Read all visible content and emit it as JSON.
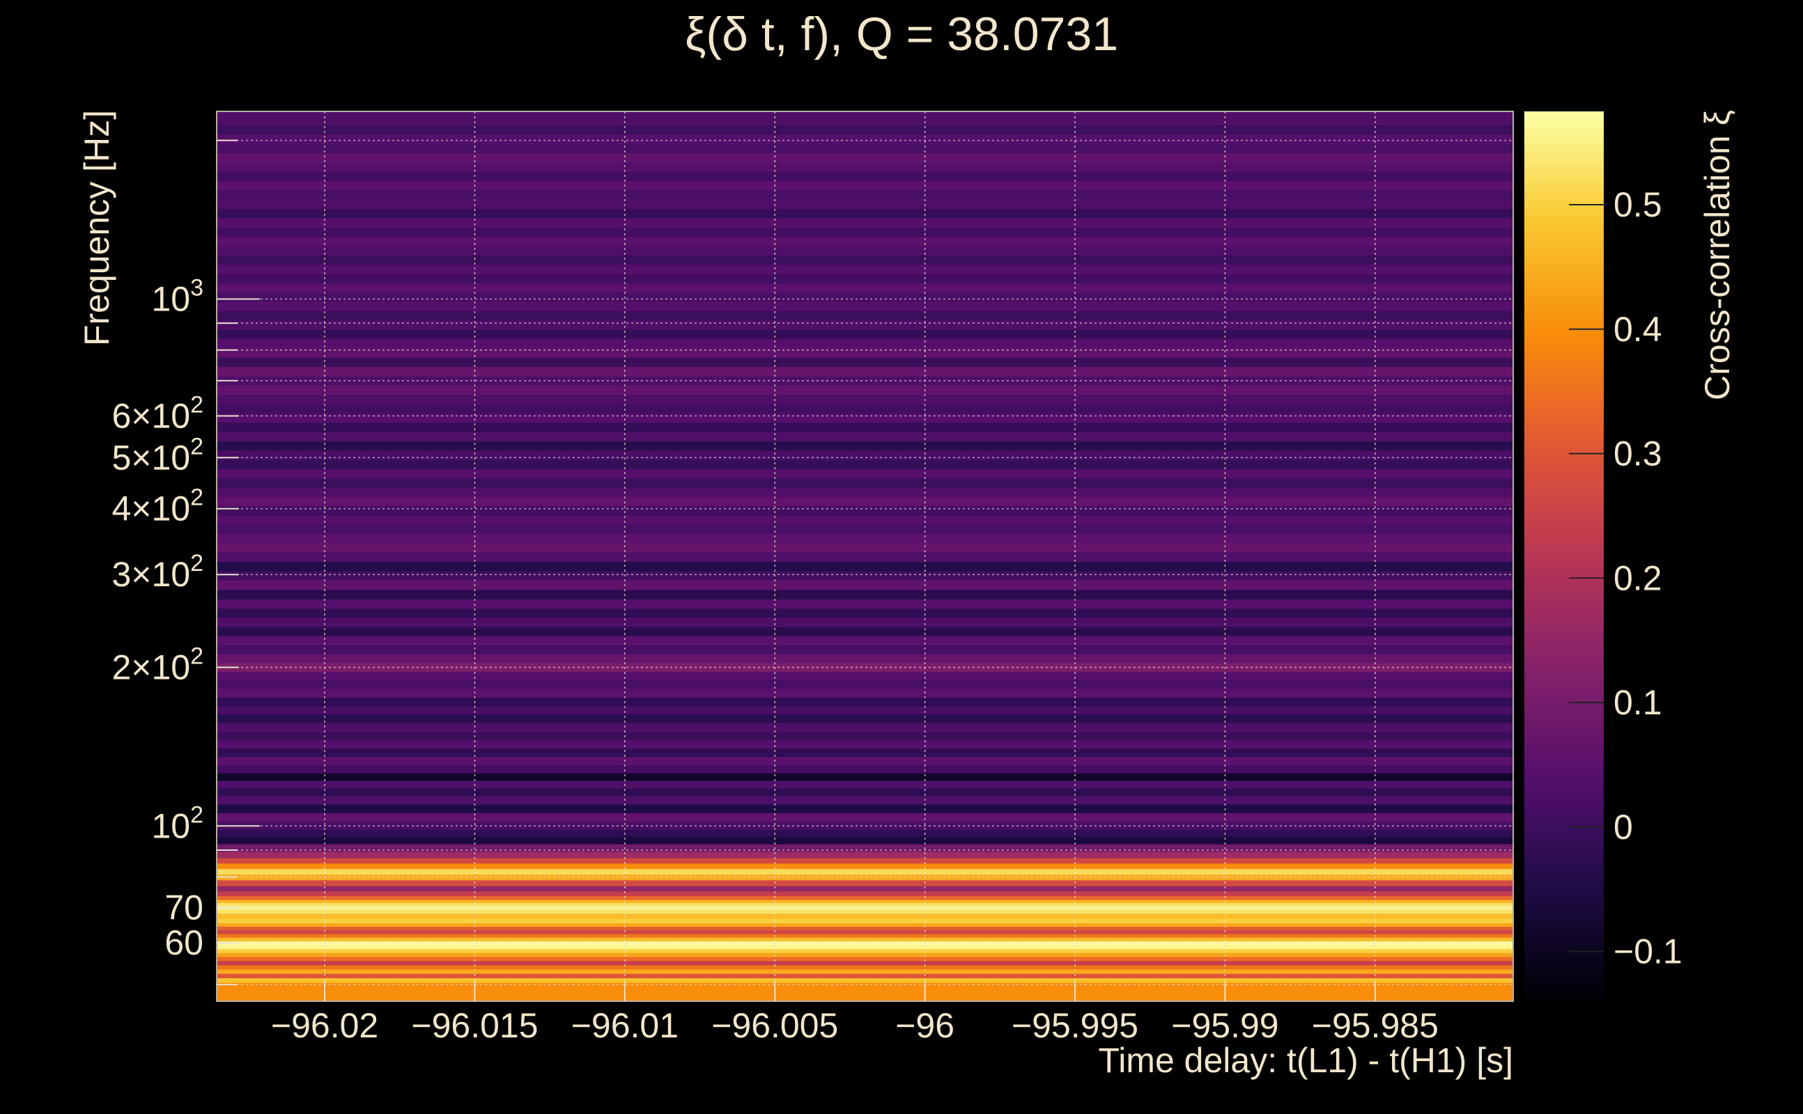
{
  "chart_data": {
    "type": "heatmap",
    "title": "ξ(δ t, f), Q = 38.0731",
    "xlabel": "Time delay: t(L1) - t(H1) [s]",
    "ylabel": "Frequency [Hz]",
    "colorbar_label": "Cross-correlation ξ",
    "xlim": [
      -96.0236,
      -95.9804
    ],
    "ylim": [
      46.5,
      2270
    ],
    "y_scale": "log",
    "clim": [
      -0.14,
      0.575
    ],
    "x_ticks": [
      {
        "value": -96.02,
        "label": "−96.02"
      },
      {
        "value": -96.015,
        "label": "−96.015"
      },
      {
        "value": -96.01,
        "label": "−96.01"
      },
      {
        "value": -96.005,
        "label": "−96.005"
      },
      {
        "value": -96.0,
        "label": "−96"
      },
      {
        "value": -95.995,
        "label": "−95.995"
      },
      {
        "value": -95.99,
        "label": "−95.99"
      },
      {
        "value": -95.985,
        "label": "−95.985"
      }
    ],
    "y_ticks_labeled": [
      {
        "value": 60,
        "label": "60"
      },
      {
        "value": 70,
        "label": "70"
      },
      {
        "value": 100,
        "label": "10",
        "exp": "2"
      },
      {
        "value": 200,
        "label": "2×10",
        "exp": "2"
      },
      {
        "value": 300,
        "label": "3×10",
        "exp": "2"
      },
      {
        "value": 400,
        "label": "4×10",
        "exp": "2"
      },
      {
        "value": 500,
        "label": "5×10",
        "exp": "2"
      },
      {
        "value": 600,
        "label": "6×10",
        "exp": "2"
      },
      {
        "value": 1000,
        "label": "10",
        "exp": "3"
      }
    ],
    "y_ticks_minor": [
      50,
      80,
      90,
      700,
      800,
      900,
      2000
    ],
    "colorbar_ticks": [
      {
        "value": -0.1,
        "label": "−0.1"
      },
      {
        "value": 0,
        "label": "0"
      },
      {
        "value": 0.1,
        "label": "0.1"
      },
      {
        "value": 0.2,
        "label": "0.2"
      },
      {
        "value": 0.3,
        "label": "0.3"
      },
      {
        "value": 0.4,
        "label": "0.4"
      },
      {
        "value": 0.5,
        "label": "0.5"
      }
    ],
    "grid": true,
    "colormap": "inferno",
    "bands": [
      {
        "f": 50.0,
        "v": 0.4
      },
      {
        "f": 51.0,
        "v": 0.48
      },
      {
        "f": 52.0,
        "v": 0.3
      },
      {
        "f": 53.0,
        "v": 0.44
      },
      {
        "f": 54.0,
        "v": 0.36
      },
      {
        "f": 55.0,
        "v": 0.24
      },
      {
        "f": 56.0,
        "v": 0.34
      },
      {
        "f": 57.0,
        "v": 0.43
      },
      {
        "f": 58.0,
        "v": 0.5
      },
      {
        "f": 59.0,
        "v": 0.56
      },
      {
        "f": 60.0,
        "v": 0.57
      },
      {
        "f": 61.0,
        "v": 0.47
      },
      {
        "f": 62.0,
        "v": 0.36
      },
      {
        "f": 63.0,
        "v": 0.26
      },
      {
        "f": 64.0,
        "v": 0.32
      },
      {
        "f": 65.0,
        "v": 0.44
      },
      {
        "f": 66.0,
        "v": 0.5
      },
      {
        "f": 67.5,
        "v": 0.47
      },
      {
        "f": 69.0,
        "v": 0.53
      },
      {
        "f": 70.0,
        "v": 0.56
      },
      {
        "f": 71.0,
        "v": 0.53
      },
      {
        "f": 72.0,
        "v": 0.46
      },
      {
        "f": 73.0,
        "v": 0.33
      },
      {
        "f": 74.5,
        "v": 0.24
      },
      {
        "f": 76.0,
        "v": 0.15
      },
      {
        "f": 78.0,
        "v": 0.27
      },
      {
        "f": 80.0,
        "v": 0.44
      },
      {
        "f": 82.0,
        "v": 0.52
      },
      {
        "f": 84.0,
        "v": 0.4
      },
      {
        "f": 86.0,
        "v": 0.27
      },
      {
        "f": 88.0,
        "v": 0.17
      },
      {
        "f": 91.0,
        "v": 0.09
      },
      {
        "f": 94.0,
        "v": -0.06
      },
      {
        "f": 97.0,
        "v": -0.02
      },
      {
        "f": 100.0,
        "v": 0.02
      },
      {
        "f": 104.0,
        "v": 0.06
      },
      {
        "f": 108.0,
        "v": -0.05
      },
      {
        "f": 112.0,
        "v": 0.03
      },
      {
        "f": 116.0,
        "v": -0.02
      },
      {
        "f": 120.0,
        "v": 0.03
      },
      {
        "f": 124.0,
        "v": -0.09
      },
      {
        "f": 128.0,
        "v": 0.01
      },
      {
        "f": 133.0,
        "v": 0.05
      },
      {
        "f": 138.0,
        "v": -0.02
      },
      {
        "f": 143.0,
        "v": 0.04
      },
      {
        "f": 148.0,
        "v": 0.0
      },
      {
        "f": 154.0,
        "v": 0.03
      },
      {
        "f": 160.0,
        "v": -0.03
      },
      {
        "f": 166.0,
        "v": 0.02
      },
      {
        "f": 172.0,
        "v": -0.02
      },
      {
        "f": 179.0,
        "v": 0.05
      },
      {
        "f": 186.0,
        "v": 0.02
      },
      {
        "f": 193.0,
        "v": 0.04
      },
      {
        "f": 200.0,
        "v": 0.11
      },
      {
        "f": 208.0,
        "v": 0.07
      },
      {
        "f": 216.0,
        "v": 0.02
      },
      {
        "f": 225.0,
        "v": 0.05
      },
      {
        "f": 234.0,
        "v": -0.03
      },
      {
        "f": 244.0,
        "v": 0.03
      },
      {
        "f": 254.0,
        "v": -0.02
      },
      {
        "f": 264.0,
        "v": 0.04
      },
      {
        "f": 275.0,
        "v": -0.03
      },
      {
        "f": 287.0,
        "v": 0.06
      },
      {
        "f": 299.0,
        "v": 0.01
      },
      {
        "f": 311.0,
        "v": -0.04
      },
      {
        "f": 324.0,
        "v": 0.03
      },
      {
        "f": 338.0,
        "v": 0.07
      },
      {
        "f": 352.0,
        "v": 0.05
      },
      {
        "f": 366.0,
        "v": 0.02
      },
      {
        "f": 381.0,
        "v": 0.04
      },
      {
        "f": 397.0,
        "v": 0.01
      },
      {
        "f": 413.0,
        "v": 0.06
      },
      {
        "f": 430.0,
        "v": 0.03
      },
      {
        "f": 448.0,
        "v": 0.0
      },
      {
        "f": 467.0,
        "v": 0.04
      },
      {
        "f": 486.0,
        "v": -0.01
      },
      {
        "f": 506.0,
        "v": 0.02
      },
      {
        "f": 527.0,
        "v": -0.03
      },
      {
        "f": 549.0,
        "v": 0.03
      },
      {
        "f": 572.0,
        "v": -0.01
      },
      {
        "f": 595.0,
        "v": 0.04
      },
      {
        "f": 620.0,
        "v": 0.01
      },
      {
        "f": 646.0,
        "v": 0.03
      },
      {
        "f": 673.0,
        "v": 0.06
      },
      {
        "f": 700.0,
        "v": 0.03
      },
      {
        "f": 729.0,
        "v": 0.07
      },
      {
        "f": 760.0,
        "v": 0.0
      },
      {
        "f": 791.0,
        "v": 0.06
      },
      {
        "f": 824.0,
        "v": 0.04
      },
      {
        "f": 858.0,
        "v": -0.01
      },
      {
        "f": 894.0,
        "v": 0.03
      },
      {
        "f": 931.0,
        "v": 0.0
      },
      {
        "f": 969.0,
        "v": 0.04
      },
      {
        "f": 1009.0,
        "v": 0.02
      },
      {
        "f": 1051.0,
        "v": 0.05
      },
      {
        "f": 1095.0,
        "v": 0.01
      },
      {
        "f": 1140.0,
        "v": 0.04
      },
      {
        "f": 1187.0,
        "v": 0.0
      },
      {
        "f": 1237.0,
        "v": 0.03
      },
      {
        "f": 1288.0,
        "v": 0.05
      },
      {
        "f": 1341.0,
        "v": 0.01
      },
      {
        "f": 1397.0,
        "v": 0.04
      },
      {
        "f": 1455.0,
        "v": -0.01
      },
      {
        "f": 1515.0,
        "v": 0.03
      },
      {
        "f": 1578.0,
        "v": 0.02
      },
      {
        "f": 1643.0,
        "v": 0.05
      },
      {
        "f": 1711.0,
        "v": 0.01
      },
      {
        "f": 1782.0,
        "v": 0.04
      },
      {
        "f": 1856.0,
        "v": 0.06
      },
      {
        "f": 1933.0,
        "v": 0.02
      },
      {
        "f": 2013.0,
        "v": 0.04
      },
      {
        "f": 2096.0,
        "v": 0.0
      },
      {
        "f": 2183.0,
        "v": 0.03
      }
    ]
  }
}
